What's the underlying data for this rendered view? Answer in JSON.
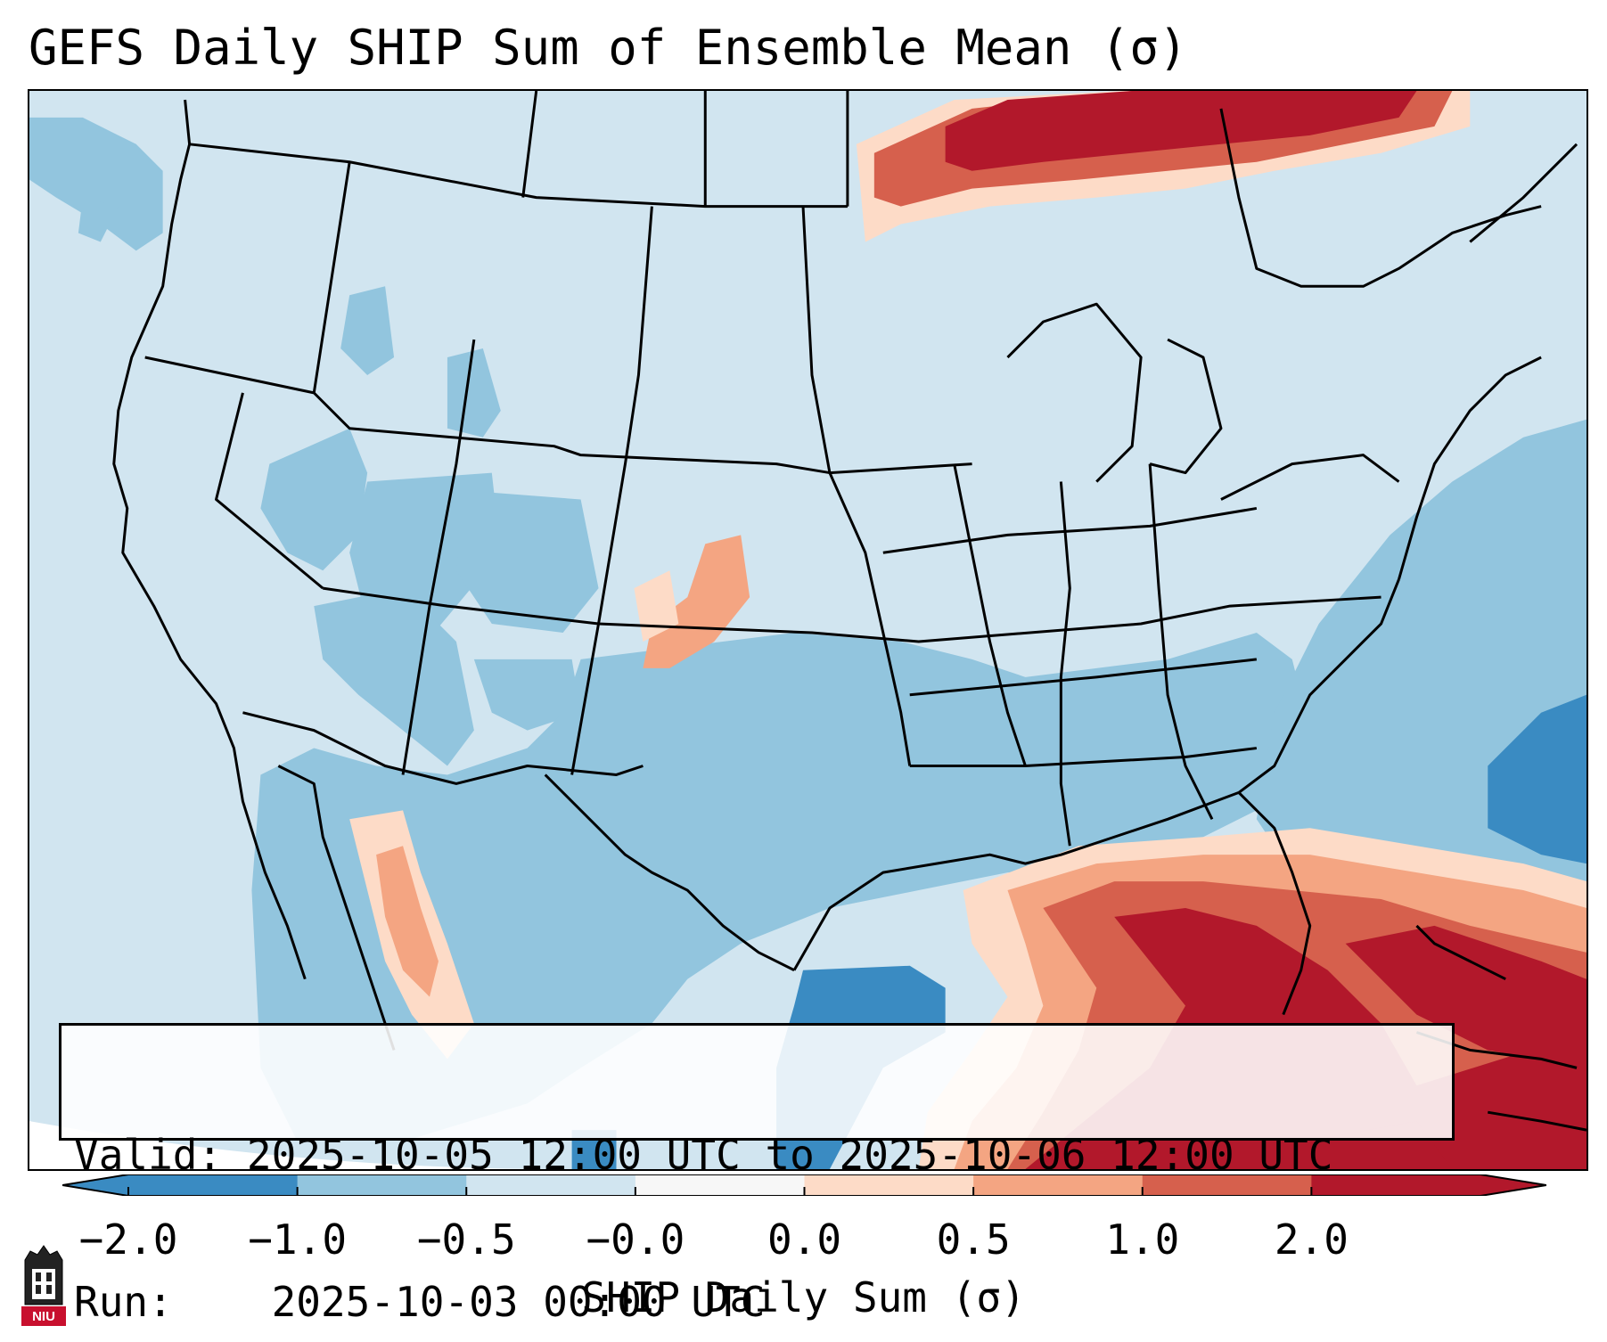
{
  "title": "GEFS Daily SHIP Sum of Ensemble Mean (σ)",
  "info": {
    "valid_label": "Valid:",
    "valid_value": "2025-10-05 12:00 UTC to 2025-10-06 12:00 UTC",
    "run_label": "Run:",
    "run_value": "2025-10-03 00:00 UTC"
  },
  "colorbar": {
    "ticks": [
      "−2.0",
      "−1.0",
      "−0.5",
      "−0.0",
      "0.0",
      "0.5",
      "1.0",
      "2.0"
    ],
    "label": "SHIP Daily Sum (σ)",
    "colors": [
      "#3a8bc2",
      "#92c5de",
      "#d1e5f0",
      "#f7f7f7",
      "#fddbc7",
      "#f4a582",
      "#d6604d",
      "#b2182b"
    ],
    "extend": "both"
  },
  "logo": {
    "text": "NIU"
  }
}
